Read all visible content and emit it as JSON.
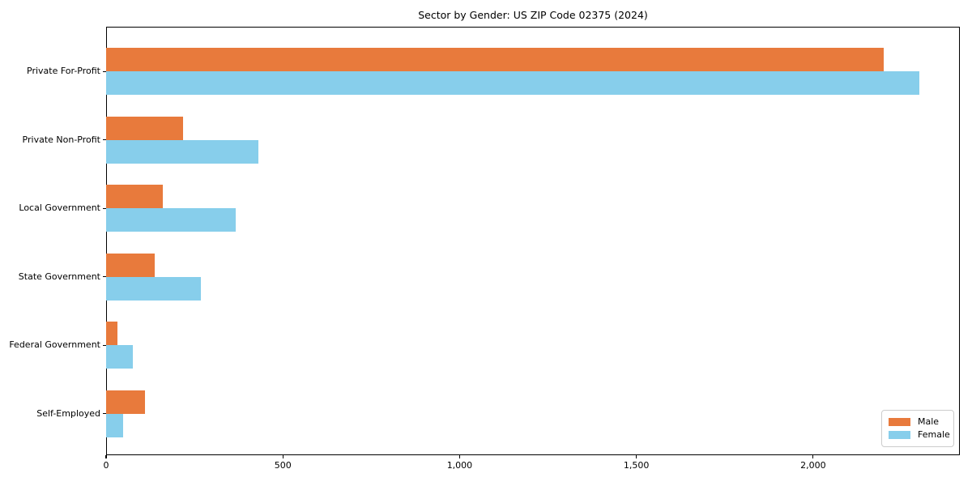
{
  "page": {
    "title": "Sector by Gender: US ZIP Code 02375 (2024)"
  },
  "chart_data": {
    "type": "bar",
    "orientation": "horizontal",
    "title": "Sector by Gender: US ZIP Code 02375 (2024)",
    "categories": [
      "Private For-Profit",
      "Private Non-Profit",
      "Local Government",
      "State Government",
      "Federal Government",
      "Self-Employed"
    ],
    "series": [
      {
        "name": "Male",
        "color": "#e87a3c",
        "values": [
          2200,
          218,
          160,
          137,
          32,
          110
        ]
      },
      {
        "name": "Female",
        "color": "#87ceeb",
        "values": [
          2300,
          430,
          366,
          268,
          75,
          48
        ]
      }
    ],
    "xlabel": "",
    "ylabel": "",
    "xlim": [
      0,
      2415
    ],
    "x_ticks": [
      0,
      500,
      1000,
      1500,
      2000
    ],
    "x_tick_labels": [
      "0",
      "500",
      "1,000",
      "1,500",
      "2,000"
    ],
    "grid": false,
    "legend_position": "lower right",
    "legend_items": [
      {
        "label": "Male",
        "color": "#e87a3c"
      },
      {
        "label": "Female",
        "color": "#87ceeb"
      }
    ]
  }
}
